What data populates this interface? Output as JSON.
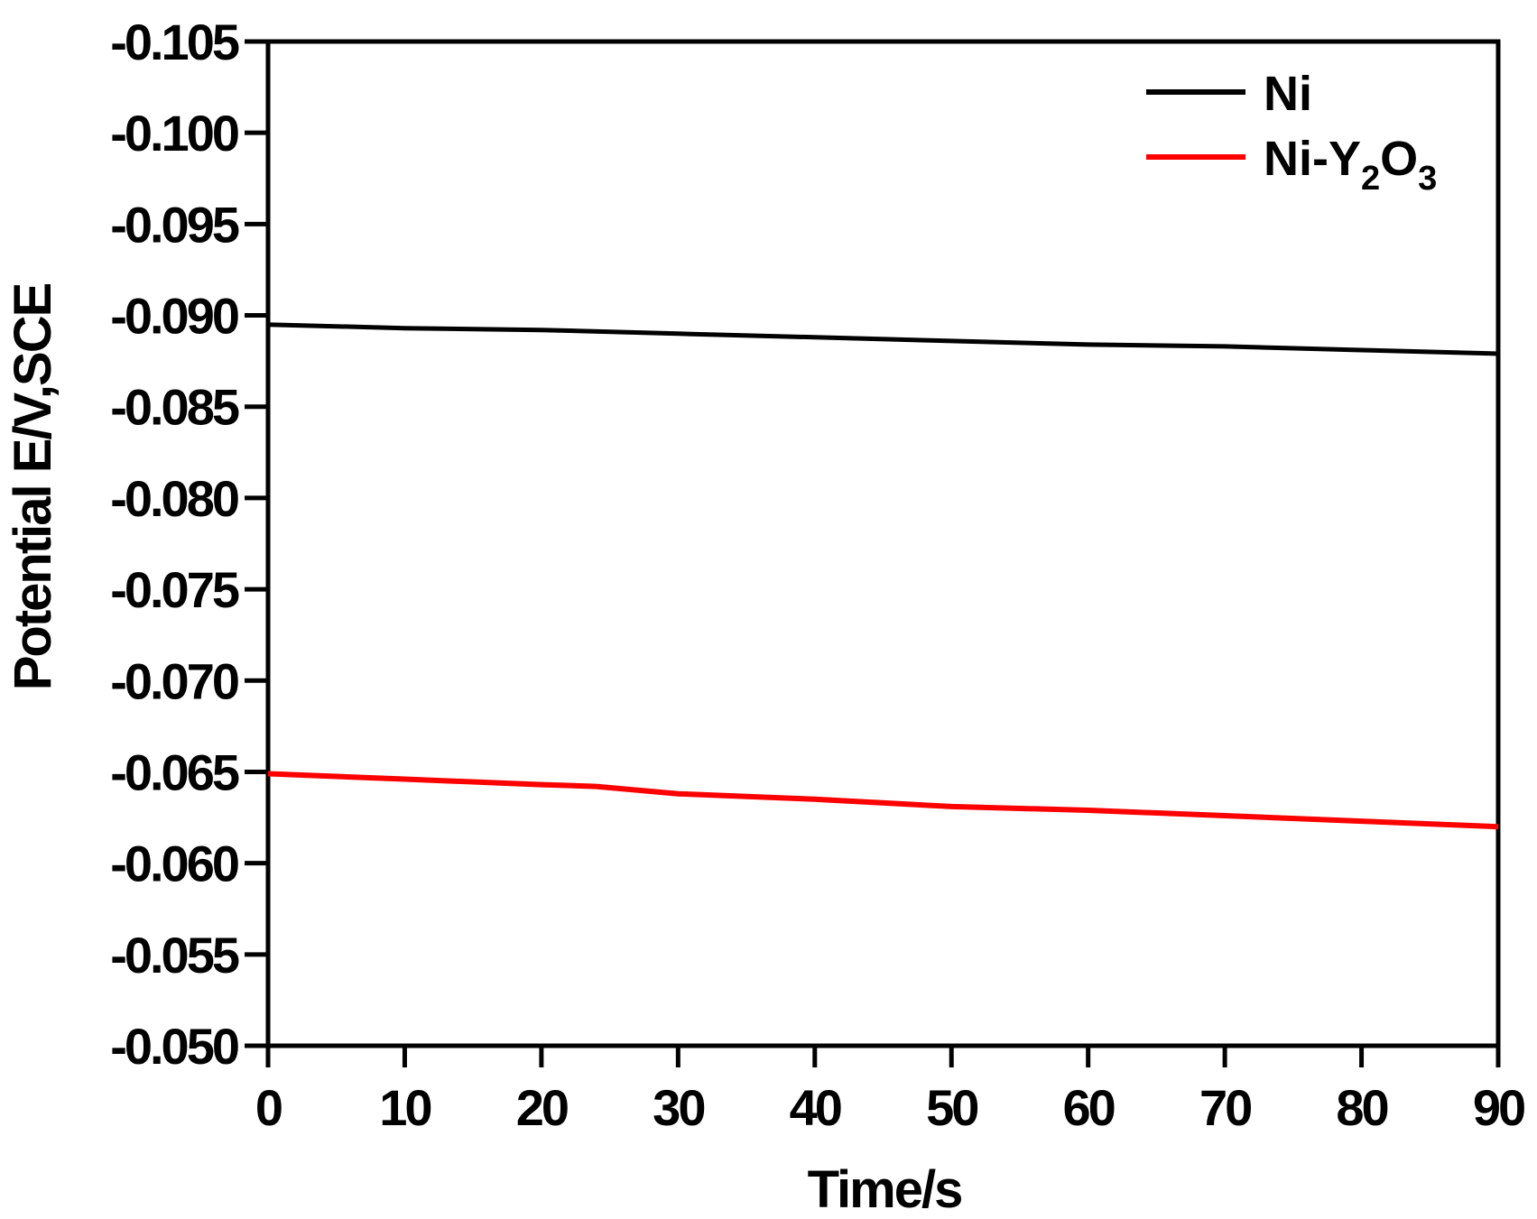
{
  "chart_data": {
    "type": "line",
    "title": "",
    "xlabel": "Time/s",
    "ylabel": "Potential E/V,SCE",
    "xlim": [
      0,
      90
    ],
    "ylim": [
      -0.05,
      -0.105
    ],
    "y_inverted": true,
    "x_ticks": [
      "0",
      "10",
      "20",
      "30",
      "40",
      "50",
      "60",
      "70",
      "80",
      "90"
    ],
    "y_ticks": [
      "-0.105",
      "-0.100",
      "-0.095",
      "-0.090",
      "-0.085",
      "-0.080",
      "-0.075",
      "-0.070",
      "-0.065",
      "-0.060",
      "-0.055",
      "-0.050"
    ],
    "legend_position": "top-right",
    "grid": false,
    "series": [
      {
        "name": "Ni",
        "color": "#000000",
        "x": [
          0,
          10,
          20,
          30,
          40,
          50,
          60,
          70,
          80,
          90
        ],
        "y": [
          -0.0895,
          -0.0893,
          -0.0892,
          -0.089,
          -0.0888,
          -0.0886,
          -0.0884,
          -0.0883,
          -0.0881,
          -0.0879
        ]
      },
      {
        "name": "Ni-Y2O3",
        "color": "#ff0000",
        "x": [
          0,
          10,
          20,
          24,
          30,
          40,
          50,
          60,
          70,
          80,
          90
        ],
        "y": [
          -0.0649,
          -0.0646,
          -0.0643,
          -0.0642,
          -0.0638,
          -0.0635,
          -0.0631,
          -0.0629,
          -0.0626,
          -0.0623,
          -0.062
        ]
      }
    ],
    "legend": [
      {
        "base": "Ni",
        "sub1": "",
        "mid": "",
        "sub2": "",
        "color": "#000000"
      },
      {
        "base": "Ni-Y",
        "sub1": "2",
        "mid": "O",
        "sub2": "3",
        "color": "#ff0000"
      }
    ]
  }
}
